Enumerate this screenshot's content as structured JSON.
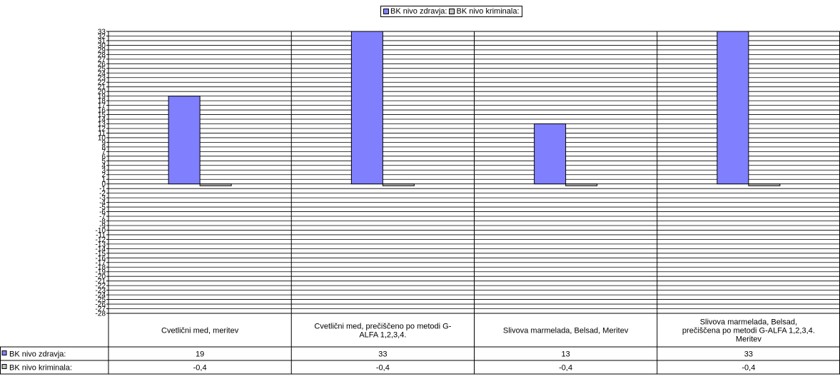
{
  "chart_data": {
    "type": "bar",
    "categories": [
      "Cvetlični med, meritev",
      "Cvetlični med, prečiščeno po metodi G-ALFA 1,2,3,4.",
      "Slivova marmelada, Belsad, Meritev",
      "Slivova marmelada, Belsad, prečiščena po metodi G-ALFA 1,2,3,4. Meritev"
    ],
    "category_lines": [
      [
        "Cvetlični med, meritev"
      ],
      [
        "Cvetlični med, prečiščeno po metodi G-",
        "ALFA 1,2,3,4."
      ],
      [
        "Slivova marmelada, Belsad, Meritev"
      ],
      [
        "Slivova marmelada, Belsad,",
        "prečiščena po metodi G-ALFA 1,2,3,4.",
        "Meritev"
      ]
    ],
    "series": [
      {
        "name": "BK nivo zdravja:",
        "values": [
          19,
          33,
          13,
          33
        ],
        "labels": [
          "19",
          "33",
          "13",
          "33"
        ],
        "color": "#8080ff"
      },
      {
        "name": "BK nivo kriminala:",
        "values": [
          -0.4,
          -0.4,
          -0.4,
          -0.4
        ],
        "labels": [
          "-0,4",
          "-0,4",
          "-0,4",
          "-0,4"
        ],
        "color": "#c0c0c0"
      }
    ],
    "ylim": [
      -28,
      33
    ],
    "ytick_step": 1,
    "grid": true,
    "legend": "top-center",
    "data_table": true
  }
}
